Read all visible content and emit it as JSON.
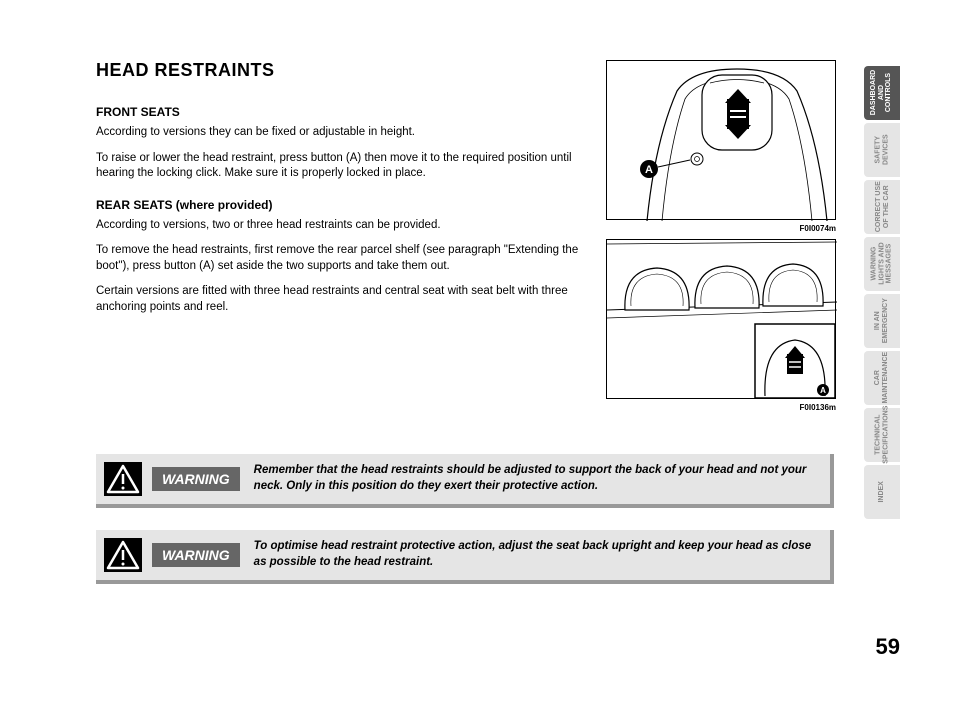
{
  "heading": "HEAD RESTRAINTS",
  "section1": {
    "title": "FRONT SEATS",
    "p1": "According to versions they can be fixed or adjustable in height.",
    "p2": "To raise or lower the head restraint, press button (A) then move it to the required position until hearing the locking click. Make sure it is properly locked in place."
  },
  "section2": {
    "title": "REAR SEATS (where provided)",
    "p1": "According to versions, two or three head restraints can be provided.",
    "p2": "To remove the head restraints, first remove the rear parcel shelf (see paragraph \"Extending the boot\"), press button (A) set aside the two supports and take them out.",
    "p3": "Certain versions are fitted with three head restraints and central seat with seat belt with three anchoring points and reel."
  },
  "figure1_caption": "F0I0074m",
  "figure2_caption": "F0I0136m",
  "warning_label": "WARNING",
  "warning1": "Remember that the head restraints should be adjusted to support the back of your head and not your neck. Only in this position do they exert their protective action.",
  "warning2": "To optimise head restraint protective action, adjust the seat back upright and keep your head as close as possible to the head restraint.",
  "tabs": [
    "DASHBOARD\nAND\nCONTROLS",
    "SAFETY\nDEVICES",
    "CORRECT USE\nOF THE CAR",
    "WARNING\nLIGHTS AND\nMESSAGES",
    "IN AN\nEMERGENCY",
    "CAR\nMAINTENANCE",
    "TECHNICAL\nSPECIFICATIONS",
    "INDEX"
  ],
  "page_number": "59",
  "label_A": "A"
}
